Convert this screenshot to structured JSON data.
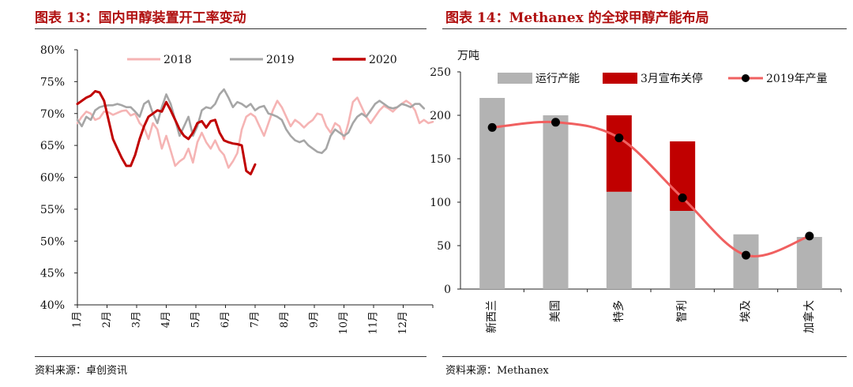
{
  "left": {
    "title": "图表 13：国内甲醇装置开工率变动",
    "source": "资料来源：卓创资讯"
  },
  "right": {
    "title": "图表 14：Methanex 的全球甲醇产能布局",
    "source": "资料来源：Methanex"
  },
  "colors": {
    "title_red": "#b01010",
    "s2018": "#f5b4b4",
    "s2019": "#a6a6a6",
    "s2020": "#c00000",
    "bar_capacity": "#b3b3b3",
    "bar_shutdown": "#c00000",
    "line_output": "#f06060",
    "marker": "#000000"
  },
  "chart_data": [
    {
      "type": "line",
      "title": "",
      "xlabel": "",
      "ylabel": "",
      "x_ticks": [
        "1月",
        "2月",
        "3月",
        "4月",
        "5月",
        "6月",
        "7月",
        "8月",
        "9月",
        "10月",
        "11月",
        "12月"
      ],
      "y_ticks": [
        "40%",
        "45%",
        "50%",
        "55%",
        "60%",
        "65%",
        "70%",
        "75%",
        "80%"
      ],
      "ylim": [
        40,
        80
      ],
      "xlim": [
        1,
        13
      ],
      "legend_position": "top",
      "series": [
        {
          "name": "2018",
          "x": [
            1.0,
            1.15,
            1.3,
            1.45,
            1.6,
            1.75,
            1.9,
            2.05,
            2.2,
            2.35,
            2.5,
            2.65,
            2.8,
            2.95,
            3.1,
            3.25,
            3.4,
            3.55,
            3.7,
            3.85,
            4.0,
            4.15,
            4.3,
            4.45,
            4.6,
            4.75,
            4.9,
            5.05,
            5.2,
            5.35,
            5.5,
            5.65,
            5.8,
            5.95,
            6.1,
            6.25,
            6.4,
            6.55,
            6.7,
            6.85,
            7.0,
            7.15,
            7.3,
            7.45,
            7.6,
            7.75,
            7.9,
            8.05,
            8.2,
            8.35,
            8.5,
            8.65,
            8.8,
            8.95,
            9.1,
            9.25,
            9.4,
            9.55,
            9.7,
            9.85,
            10.0,
            10.15,
            10.3,
            10.45,
            10.6,
            10.75,
            10.9,
            11.05,
            11.2,
            11.35,
            11.5,
            11.65,
            11.8,
            11.95,
            12.1,
            12.25,
            12.4,
            12.55,
            12.7,
            12.85,
            13.0
          ],
          "values": [
            68.5,
            69.5,
            70.3,
            70.0,
            69.0,
            69.3,
            70.3,
            70.2,
            69.8,
            70.1,
            70.4,
            70.5,
            69.7,
            70.0,
            68.5,
            67.8,
            66.0,
            68.5,
            67.5,
            64.5,
            66.5,
            64.2,
            61.8,
            62.5,
            63.0,
            64.5,
            62.3,
            65.5,
            67.0,
            65.5,
            64.5,
            65.8,
            64.3,
            63.5,
            61.5,
            62.5,
            63.8,
            67.5,
            69.5,
            70.0,
            69.5,
            68.0,
            66.5,
            68.5,
            70.5,
            72.0,
            71.0,
            69.5,
            68.0,
            69.0,
            68.5,
            67.8,
            68.5,
            69.0,
            70.0,
            69.8,
            68.0,
            67.0,
            68.5,
            68.0,
            66.0,
            68.5,
            71.8,
            72.5,
            71.0,
            69.5,
            68.5,
            69.5,
            70.5,
            71.2,
            70.8,
            70.3,
            71.0,
            71.5,
            72.0,
            71.5,
            70.5,
            68.5,
            69.0,
            68.5,
            68.7
          ]
        },
        {
          "name": "2019",
          "x": [
            1.0,
            1.15,
            1.3,
            1.45,
            1.6,
            1.75,
            1.9,
            2.05,
            2.2,
            2.35,
            2.5,
            2.65,
            2.8,
            2.95,
            3.1,
            3.25,
            3.4,
            3.55,
            3.7,
            3.85,
            4.0,
            4.15,
            4.3,
            4.45,
            4.6,
            4.75,
            4.9,
            5.05,
            5.2,
            5.35,
            5.5,
            5.65,
            5.8,
            5.95,
            6.1,
            6.25,
            6.4,
            6.55,
            6.7,
            6.85,
            7.0,
            7.15,
            7.3,
            7.45,
            7.6,
            7.75,
            7.9,
            8.05,
            8.2,
            8.35,
            8.5,
            8.65,
            8.8,
            8.95,
            9.1,
            9.25,
            9.4,
            9.55,
            9.7,
            9.85,
            10.0,
            10.15,
            10.3,
            10.45,
            10.6,
            10.75,
            10.9,
            11.05,
            11.2,
            11.35,
            11.5,
            11.65,
            11.8,
            11.95,
            12.1,
            12.25,
            12.4,
            12.55,
            12.7
          ],
          "values": [
            69.0,
            68.0,
            69.5,
            69.0,
            70.5,
            71.0,
            71.2,
            71.3,
            71.3,
            71.5,
            71.3,
            71.0,
            71.0,
            70.3,
            69.5,
            71.5,
            72.0,
            70.0,
            68.5,
            71.0,
            73.0,
            71.5,
            69.0,
            66.5,
            68.0,
            69.5,
            66.5,
            68.0,
            70.5,
            71.0,
            70.8,
            71.5,
            73.0,
            73.8,
            72.5,
            71.0,
            71.8,
            71.5,
            71.0,
            71.5,
            70.5,
            71.0,
            71.2,
            70.0,
            69.8,
            69.5,
            69.0,
            67.5,
            66.5,
            65.8,
            65.5,
            65.8,
            65.0,
            64.5,
            64.0,
            63.8,
            64.5,
            66.5,
            67.5,
            67.0,
            66.5,
            67.0,
            68.5,
            69.5,
            70.0,
            69.5,
            70.5,
            71.5,
            72.0,
            71.5,
            71.0,
            70.8,
            71.0,
            71.5,
            71.3,
            71.0,
            71.5,
            71.5,
            70.8
          ]
        },
        {
          "name": "2020",
          "x": [
            1.0,
            1.15,
            1.3,
            1.45,
            1.6,
            1.75,
            1.9,
            2.05,
            2.2,
            2.35,
            2.5,
            2.65,
            2.8,
            2.95,
            3.1,
            3.25,
            3.4,
            3.55,
            3.7,
            3.85,
            4.0,
            4.15,
            4.3,
            4.45,
            4.6,
            4.75,
            4.9,
            5.05,
            5.2,
            5.35,
            5.5,
            5.65,
            5.8,
            5.95,
            6.1,
            6.25,
            6.4,
            6.55,
            6.7,
            6.85,
            7.0
          ],
          "values": [
            71.5,
            72.0,
            72.5,
            72.8,
            73.5,
            73.3,
            72.0,
            69.0,
            66.0,
            64.5,
            63.0,
            61.8,
            61.8,
            63.5,
            66.0,
            68.0,
            69.5,
            70.0,
            70.5,
            70.3,
            71.8,
            70.5,
            69.0,
            67.5,
            66.5,
            66.0,
            67.0,
            68.5,
            68.8,
            67.8,
            68.8,
            69.0,
            67.0,
            65.8,
            65.5,
            65.3,
            65.2,
            65.0,
            61.0,
            60.5,
            62.0
          ]
        }
      ]
    },
    {
      "type": "bar",
      "title": "",
      "xlabel": "",
      "ylabel": "万吨",
      "categories": [
        "新西兰",
        "美国",
        "特多",
        "智利",
        "埃及",
        "加拿大"
      ],
      "y_ticks": [
        "0",
        "50",
        "100",
        "150",
        "200",
        "250"
      ],
      "ylim": [
        0,
        250
      ],
      "stacked": true,
      "legend_position": "top",
      "series": [
        {
          "name": "运行产能",
          "kind": "bar",
          "values": [
            220,
            200,
            112,
            90,
            63,
            60
          ]
        },
        {
          "name": "3月宣布关停",
          "kind": "bar",
          "values": [
            0,
            0,
            88,
            80,
            0,
            0
          ]
        },
        {
          "name": "2019年产量",
          "kind": "line",
          "values": [
            186,
            192,
            174,
            105,
            39,
            61
          ]
        }
      ]
    }
  ]
}
